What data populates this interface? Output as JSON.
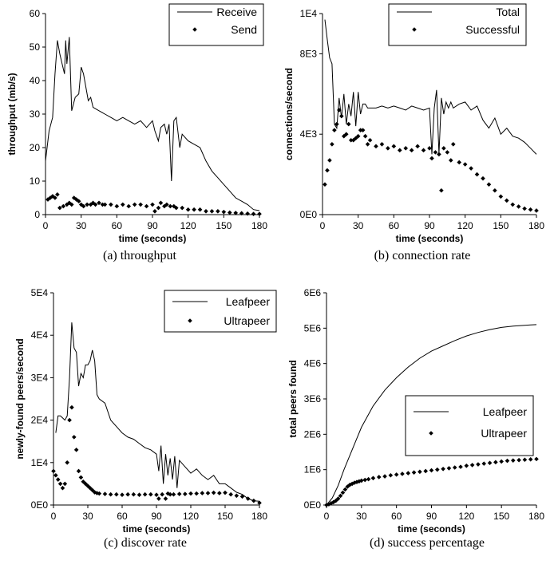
{
  "chart_data": [
    {
      "type": "line",
      "caption": "(a) throughput",
      "xlabel": "time (seconds)",
      "ylabel": "throughput (mb/s)",
      "xlim": [
        0,
        180
      ],
      "ylim": [
        0,
        60
      ],
      "xticks": [
        "0",
        "30",
        "60",
        "90",
        "120",
        "150",
        "180"
      ],
      "yticks": [
        "0",
        "10",
        "20",
        "30",
        "40",
        "50",
        "60"
      ],
      "legend_position": "top-right",
      "series": [
        {
          "name": "Receive",
          "style": "line",
          "x": [
            0,
            3,
            6,
            8,
            10,
            12,
            14,
            16,
            17,
            18,
            20,
            22,
            25,
            28,
            30,
            32,
            34,
            36,
            38,
            40,
            45,
            50,
            55,
            60,
            65,
            70,
            75,
            80,
            85,
            90,
            92,
            95,
            97,
            100,
            102,
            104,
            106,
            108,
            110,
            113,
            115,
            120,
            125,
            130,
            135,
            140,
            145,
            150,
            155,
            160,
            165,
            170,
            175,
            180
          ],
          "y": [
            16,
            25,
            29,
            42,
            52,
            48,
            45,
            42,
            52,
            45,
            53,
            31,
            35,
            36,
            44,
            42,
            38,
            34,
            35,
            32,
            31,
            30,
            29,
            28,
            29,
            28,
            27,
            28,
            26,
            28,
            25,
            22,
            26,
            27,
            24,
            27,
            10,
            28,
            29,
            20,
            24,
            22,
            21,
            20,
            16,
            13,
            11,
            9,
            7,
            5,
            4,
            3,
            1.5,
            1.2
          ]
        },
        {
          "name": "Send",
          "style": "markers",
          "x": [
            2,
            4,
            6,
            8,
            10,
            12,
            15,
            18,
            20,
            22,
            24,
            26,
            28,
            30,
            32,
            35,
            38,
            40,
            42,
            45,
            48,
            50,
            55,
            60,
            65,
            70,
            75,
            80,
            85,
            90,
            92,
            95,
            97,
            100,
            102,
            105,
            108,
            110,
            115,
            120,
            125,
            130,
            135,
            140,
            145,
            150,
            155,
            160,
            165,
            170,
            175,
            180
          ],
          "y": [
            4.5,
            5,
            5.5,
            5,
            6,
            2,
            2.5,
            3,
            3.5,
            3,
            5,
            4.5,
            4,
            3,
            2.5,
            3,
            3,
            3.5,
            3,
            3.5,
            3,
            3,
            3,
            2.5,
            3,
            2.5,
            3,
            3,
            2.5,
            3,
            1,
            2,
            3.5,
            2.5,
            3,
            2.5,
            2.5,
            2,
            2,
            1.5,
            1.5,
            1.5,
            1,
            1,
            1,
            0.8,
            0.6,
            0.5,
            0.4,
            0.3,
            0.2,
            0.2
          ]
        }
      ]
    },
    {
      "type": "line",
      "caption": "(b) connection rate",
      "xlabel": "time (seconds)",
      "ylabel": "connections/second",
      "xlim": [
        0,
        180
      ],
      "ylim": [
        0,
        10000
      ],
      "xticks": [
        "0",
        "30",
        "60",
        "90",
        "120",
        "150",
        "180"
      ],
      "yticks": [
        "0E0",
        "4E3",
        "8E3",
        "1E4"
      ],
      "ytick_values": [
        0,
        4000,
        8000,
        10000
      ],
      "legend_position": "top-right",
      "series": [
        {
          "name": "Total",
          "style": "line",
          "x": [
            2,
            4,
            6,
            8,
            10,
            12,
            14,
            16,
            18,
            20,
            22,
            24,
            26,
            28,
            30,
            32,
            34,
            36,
            38,
            40,
            45,
            50,
            55,
            60,
            65,
            70,
            75,
            80,
            85,
            90,
            92,
            94,
            96,
            98,
            100,
            102,
            104,
            106,
            108,
            110,
            115,
            120,
            125,
            130,
            135,
            140,
            145,
            150,
            155,
            160,
            165,
            170,
            175,
            180
          ],
          "y": [
            9700,
            8700,
            7800,
            7500,
            4500,
            4300,
            5800,
            4800,
            6000,
            4500,
            5500,
            4900,
            6100,
            4400,
            6100,
            5000,
            5500,
            5500,
            5300,
            5300,
            5300,
            5400,
            5300,
            5400,
            5300,
            5200,
            5400,
            5300,
            5200,
            5300,
            3000,
            5300,
            6200,
            3000,
            5800,
            5000,
            5600,
            5300,
            5600,
            5300,
            5500,
            5600,
            5200,
            5400,
            4700,
            4300,
            4800,
            4000,
            4300,
            3900,
            3800,
            3600,
            3300,
            3000
          ]
        },
        {
          "name": "Successful",
          "style": "markers",
          "x": [
            2,
            4,
            6,
            8,
            10,
            12,
            14,
            16,
            18,
            20,
            22,
            24,
            26,
            28,
            30,
            32,
            34,
            36,
            38,
            40,
            45,
            50,
            55,
            60,
            65,
            70,
            75,
            80,
            85,
            90,
            92,
            95,
            98,
            100,
            102,
            105,
            108,
            110,
            115,
            120,
            125,
            130,
            135,
            140,
            145,
            150,
            155,
            160,
            165,
            170,
            175,
            180
          ],
          "y": [
            1500,
            2200,
            2700,
            3500,
            4200,
            4500,
            5200,
            4900,
            3900,
            4000,
            4500,
            3700,
            3700,
            3800,
            3900,
            4200,
            4200,
            3900,
            3500,
            3700,
            3400,
            3500,
            3300,
            3400,
            3200,
            3300,
            3200,
            3400,
            3200,
            3300,
            2800,
            3100,
            3000,
            1200,
            3300,
            3100,
            2700,
            3500,
            2600,
            2500,
            2300,
            2000,
            1800,
            1500,
            1200,
            900,
            700,
            500,
            400,
            300,
            250,
            200
          ]
        }
      ]
    },
    {
      "type": "line",
      "caption": "(c) discover rate",
      "xlabel": "time (seconds)",
      "ylabel": "newly-found peers/second",
      "xlim": [
        0,
        180
      ],
      "ylim": [
        0,
        50000
      ],
      "xticks": [
        "0",
        "30",
        "60",
        "90",
        "120",
        "150",
        "180"
      ],
      "yticks": [
        "0E0",
        "1E4",
        "2E4",
        "3E4",
        "4E4",
        "5E4"
      ],
      "ytick_values": [
        0,
        10000,
        20000,
        30000,
        40000,
        50000
      ],
      "legend_position": "top-right",
      "series": [
        {
          "name": "Leafpeer",
          "style": "line",
          "x": [
            2,
            4,
            6,
            8,
            10,
            12,
            14,
            16,
            18,
            20,
            22,
            24,
            26,
            28,
            30,
            32,
            34,
            36,
            38,
            40,
            45,
            50,
            55,
            60,
            65,
            70,
            75,
            80,
            85,
            90,
            92,
            94,
            96,
            98,
            100,
            102,
            104,
            106,
            108,
            110,
            115,
            120,
            125,
            130,
            135,
            140,
            145,
            150,
            155,
            160,
            165,
            170,
            175,
            180
          ],
          "y": [
            17000,
            21000,
            21000,
            20500,
            20000,
            21000,
            30000,
            43000,
            37000,
            36000,
            28000,
            31000,
            30000,
            33000,
            33000,
            34000,
            36500,
            34000,
            26000,
            25000,
            24000,
            20000,
            18500,
            17000,
            16000,
            15500,
            14500,
            13500,
            13000,
            12000,
            8000,
            14000,
            5000,
            12000,
            7000,
            11000,
            6000,
            11500,
            4000,
            10500,
            9000,
            7500,
            8500,
            7000,
            6000,
            7000,
            5000,
            5000,
            4000,
            3000,
            2500,
            1500,
            1000,
            900
          ]
        },
        {
          "name": "Ultrapeer",
          "style": "markers",
          "x": [
            0,
            2,
            4,
            6,
            8,
            10,
            12,
            14,
            16,
            18,
            20,
            22,
            24,
            26,
            28,
            30,
            32,
            34,
            36,
            38,
            40,
            45,
            50,
            55,
            60,
            65,
            70,
            75,
            80,
            85,
            90,
            92,
            95,
            98,
            100,
            102,
            105,
            110,
            115,
            120,
            125,
            130,
            135,
            140,
            145,
            150,
            155,
            160,
            165,
            170,
            175,
            180
          ],
          "y": [
            8000,
            7000,
            6000,
            5000,
            4000,
            5000,
            10000,
            20000,
            23000,
            16000,
            13000,
            8000,
            6500,
            5500,
            5000,
            4500,
            4000,
            3500,
            3000,
            2800,
            2700,
            2600,
            2500,
            2500,
            2400,
            2500,
            2500,
            2400,
            2500,
            2500,
            2400,
            1500,
            2500,
            1500,
            2700,
            2500,
            2500,
            2600,
            2600,
            2700,
            2700,
            2800,
            2800,
            2900,
            2800,
            2900,
            2500,
            2200,
            2000,
            1500,
            1000,
            500
          ]
        }
      ]
    },
    {
      "type": "line",
      "caption": "(d) success percentage",
      "xlabel": "time (seconds)",
      "ylabel": "total peers found",
      "xlim": [
        0,
        180
      ],
      "ylim": [
        0,
        6000000
      ],
      "xticks": [
        "0",
        "30",
        "60",
        "90",
        "120",
        "150",
        "180"
      ],
      "yticks": [
        "0E0",
        "1E6",
        "2E6",
        "3E6",
        "4E6",
        "5E6",
        "6E6"
      ],
      "ytick_values": [
        0,
        1000000,
        2000000,
        3000000,
        4000000,
        5000000,
        6000000
      ],
      "legend_position": "center-right",
      "series": [
        {
          "name": "Leafpeer",
          "style": "line",
          "x": [
            0,
            5,
            10,
            15,
            20,
            25,
            30,
            40,
            50,
            60,
            70,
            80,
            90,
            100,
            110,
            120,
            130,
            140,
            150,
            160,
            170,
            175,
            180
          ],
          "y": [
            0,
            200000,
            550000,
            1000000,
            1400000,
            1800000,
            2200000,
            2800000,
            3250000,
            3600000,
            3900000,
            4150000,
            4350000,
            4500000,
            4650000,
            4780000,
            4880000,
            4960000,
            5020000,
            5060000,
            5080000,
            5090000,
            5100000
          ]
        },
        {
          "name": "Ultrapeer",
          "style": "markers",
          "x": [
            0,
            2,
            4,
            6,
            8,
            10,
            12,
            14,
            16,
            18,
            20,
            22,
            24,
            26,
            28,
            30,
            33,
            36,
            40,
            45,
            50,
            55,
            60,
            65,
            70,
            75,
            80,
            85,
            90,
            95,
            100,
            105,
            110,
            115,
            120,
            125,
            130,
            135,
            140,
            145,
            150,
            155,
            160,
            165,
            170,
            175,
            180
          ],
          "y": [
            0,
            20000,
            50000,
            80000,
            120000,
            180000,
            260000,
            350000,
            440000,
            520000,
            570000,
            600000,
            630000,
            650000,
            670000,
            690000,
            710000,
            730000,
            760000,
            790000,
            810000,
            840000,
            860000,
            880000,
            900000,
            920000,
            940000,
            960000,
            980000,
            1000000,
            1020000,
            1040000,
            1060000,
            1080000,
            1110000,
            1130000,
            1150000,
            1170000,
            1190000,
            1210000,
            1230000,
            1250000,
            1260000,
            1270000,
            1280000,
            1290000,
            1300000
          ]
        }
      ]
    }
  ]
}
